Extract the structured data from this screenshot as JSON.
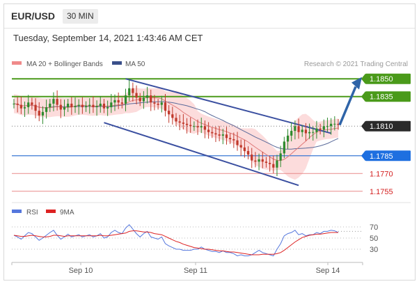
{
  "header": {
    "symbol": "EUR/USD",
    "timeframe": "30 MIN",
    "timestamp": "Tuesday, September 14, 2021 1:43:46 AM CET"
  },
  "legend": {
    "ma20": "MA 20 + Bollinger Bands",
    "ma50": "MA 50",
    "credit": "Research © 2021 Trading Central",
    "rsi": "RSI",
    "rsi_ma": "9MA"
  },
  "colors": {
    "candle_up": "#2e8b2e",
    "candle_down": "#c0392b",
    "resistance": "#4a9a1a",
    "support_blue": "#3a78d4",
    "support_red": "#e88a8a",
    "channel": "#3a4fa0",
    "arrow": "#2f64a8",
    "bollinger": "#fbd6d6",
    "rsi_line": "#5577dd",
    "rsi_ma": "#dd2222",
    "ma50": "#5a6a9a",
    "ma20": "#e07a7a"
  },
  "chart_data": {
    "type": "line",
    "title": "EUR/USD 30 MIN",
    "ylim": [
      1.1749,
      1.1856
    ],
    "x_ticks": [
      "Sep 10",
      "Sep 11",
      "Sep 14"
    ],
    "series": [
      {
        "name": "EUR/USD",
        "values": [
          1.1829,
          1.1828,
          1.1825,
          1.1826,
          1.183,
          1.1828,
          1.1823,
          1.1819,
          1.1822,
          1.1826,
          1.1829,
          1.1833,
          1.1828,
          1.1824,
          1.1826,
          1.1829,
          1.1826,
          1.1827,
          1.1828,
          1.1826,
          1.1827,
          1.1828,
          1.1826,
          1.1827,
          1.1829,
          1.1825,
          1.1826,
          1.183,
          1.1832,
          1.183,
          1.1829,
          1.1836,
          1.1842,
          1.1838,
          1.1834,
          1.1831,
          1.1834,
          1.1836,
          1.183,
          1.1829,
          1.1828,
          1.183,
          1.1823,
          1.182,
          1.1817,
          1.1814,
          1.1813,
          1.1812,
          1.1811,
          1.181,
          1.181,
          1.1809,
          1.181,
          1.1807,
          1.1805,
          1.1804,
          1.1803,
          1.1802,
          1.1803,
          1.18,
          1.1799,
          1.1798,
          1.1794,
          1.1792,
          1.1789,
          1.1786,
          1.1781,
          1.178,
          1.1782,
          1.178,
          1.1779,
          1.1778,
          1.1775,
          1.1781,
          1.1787,
          1.1797,
          1.1802,
          1.1806,
          1.181,
          1.1805,
          1.1807,
          1.1804,
          1.1805,
          1.1805,
          1.1808,
          1.1807,
          1.181,
          1.181,
          1.1812,
          1.1812,
          1.1811
        ]
      }
    ],
    "levels": [
      {
        "label": "1.1850",
        "value": 1.185,
        "kind": "resistance"
      },
      {
        "label": "1.1835",
        "value": 1.1835,
        "kind": "resistance"
      },
      {
        "label": "1.1810",
        "value": 1.181,
        "kind": "current"
      },
      {
        "label": "1.1785",
        "value": 1.1785,
        "kind": "pivot"
      },
      {
        "label": "1.1770",
        "value": 1.177,
        "kind": "support"
      },
      {
        "label": "1.1755",
        "value": 1.1755,
        "kind": "support"
      }
    ],
    "rsi": {
      "ticks": [
        70,
        50,
        30
      ],
      "ylim": [
        15,
        80
      ],
      "values": [
        55,
        52,
        48,
        54,
        60,
        58,
        52,
        46,
        50,
        55,
        60,
        64,
        55,
        48,
        52,
        57,
        52,
        54,
        56,
        52,
        54,
        56,
        52,
        54,
        58,
        50,
        52,
        60,
        64,
        60,
        58,
        68,
        74,
        66,
        58,
        52,
        58,
        62,
        52,
        50,
        48,
        52,
        40,
        36,
        33,
        30,
        30,
        28,
        28,
        28,
        30,
        30,
        34,
        30,
        28,
        26,
        26,
        24,
        27,
        24,
        24,
        22,
        18,
        20,
        18,
        18,
        20,
        24,
        28,
        24,
        22,
        20,
        18,
        30,
        40,
        54,
        58,
        60,
        64,
        56,
        58,
        54,
        56,
        56,
        60,
        58,
        62,
        62,
        64,
        63,
        60
      ],
      "ma": [
        55,
        54,
        53,
        53,
        54,
        55,
        54,
        53,
        52,
        52,
        53,
        55,
        55,
        54,
        53,
        54,
        54,
        54,
        54,
        54,
        54,
        54,
        54,
        54,
        55,
        54,
        54,
        55,
        56,
        57,
        58,
        59,
        62,
        63,
        63,
        62,
        61,
        61,
        60,
        58,
        57,
        56,
        53,
        50,
        47,
        44,
        42,
        39,
        37,
        35,
        33,
        32,
        31,
        30,
        30,
        29,
        28,
        27,
        27,
        26,
        25,
        25,
        24,
        23,
        22,
        21,
        20,
        20,
        20,
        21,
        21,
        21,
        21,
        22,
        24,
        28,
        33,
        38,
        43,
        47,
        51,
        53,
        55,
        56,
        57,
        57,
        58,
        59,
        60,
        60,
        60
      ]
    }
  }
}
